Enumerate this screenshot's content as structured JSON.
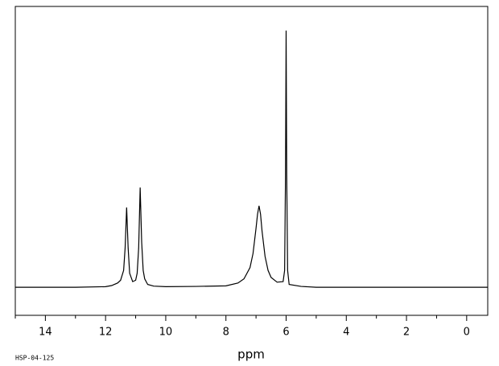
{
  "chart_data": {
    "type": "line",
    "xlabel": "ppm",
    "footer": "HSP-04-125",
    "xlim": [
      15,
      -0.7
    ],
    "ylim": [
      -10,
      100
    ],
    "xticks": [
      14,
      12,
      10,
      8,
      6,
      4,
      2,
      0
    ],
    "xminorticks": [
      15,
      13,
      11,
      9,
      7,
      5,
      3,
      1
    ],
    "series": [
      {
        "color": "#000000",
        "x": [
          15,
          14,
          13,
          12,
          11.8,
          11.6,
          11.5,
          11.4,
          11.35,
          11.3,
          11.25,
          11.2,
          11.1,
          11.0,
          10.95,
          10.9,
          10.85,
          10.8,
          10.75,
          10.7,
          10.6,
          10.4,
          10.0,
          9.0,
          8.0,
          7.6,
          7.4,
          7.2,
          7.1,
          7.0,
          6.95,
          6.9,
          6.85,
          6.8,
          6.7,
          6.6,
          6.5,
          6.3,
          6.1,
          6.05,
          6.02,
          6.0,
          5.98,
          5.95,
          5.9,
          5.5,
          5,
          4,
          3,
          2,
          1,
          0,
          -0.7
        ],
        "values": [
          0,
          0,
          0,
          0.2,
          0.6,
          1.5,
          2.5,
          6,
          14,
          28.4,
          14,
          5,
          2,
          2.5,
          5,
          14,
          35.5,
          16,
          6,
          3,
          1,
          0.4,
          0.2,
          0.3,
          0.5,
          1.5,
          3,
          7,
          12,
          21,
          26,
          29,
          26,
          20,
          11,
          6,
          3.5,
          1.8,
          2,
          6,
          40,
          91.4,
          40,
          6,
          1,
          0.3,
          0,
          0,
          0,
          0,
          0,
          0,
          0
        ]
      }
    ]
  }
}
